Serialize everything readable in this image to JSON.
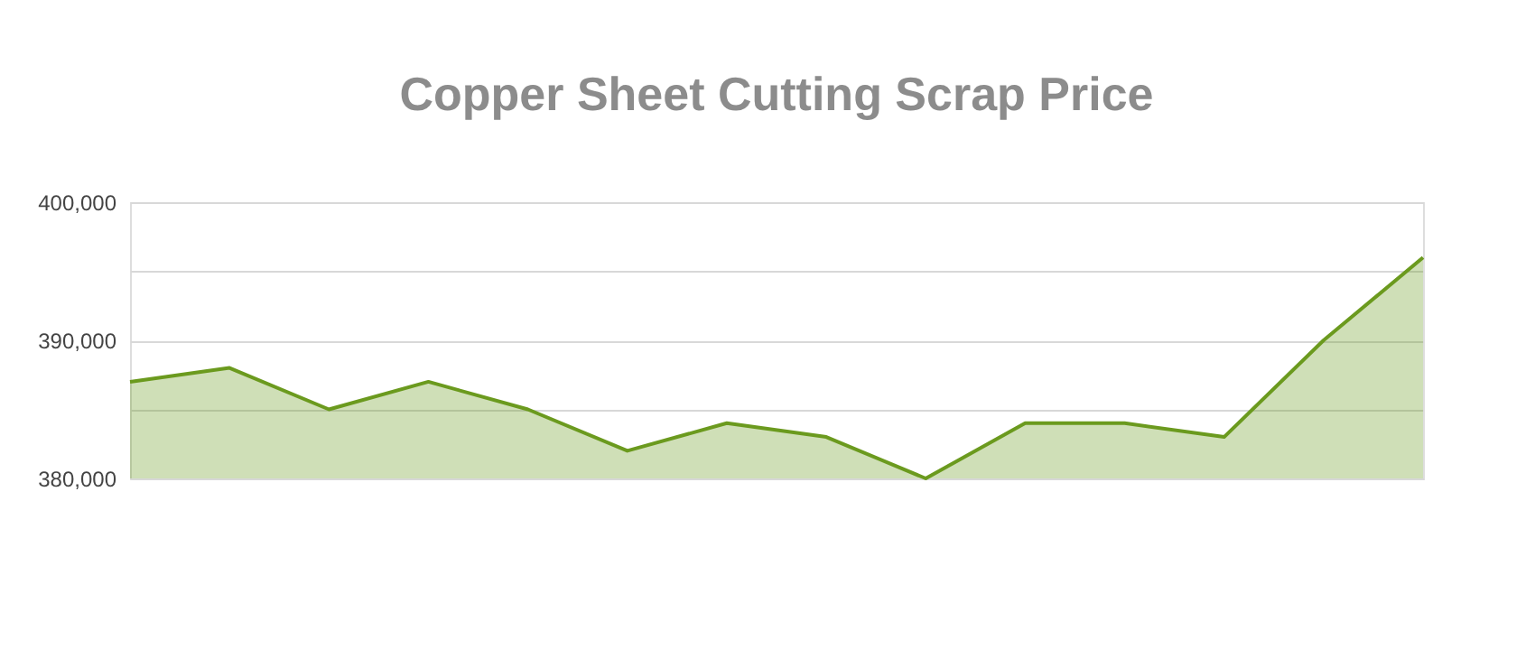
{
  "chart_data": {
    "type": "area",
    "title": "Copper Sheet Cutting Scrap Price",
    "categories": [
      null,
      null,
      null,
      null,
      null,
      null,
      null,
      null,
      null,
      null,
      null,
      null,
      null,
      null
    ],
    "series": [
      {
        "color": "#6b9a1e",
        "values": [
          387000,
          388000,
          385000,
          387000,
          385000,
          382000,
          384000,
          383000,
          380000,
          384000,
          384000,
          383000,
          390000,
          396000
        ]
      }
    ],
    "ylim": [
      380000,
      400000
    ],
    "yticks": [
      {
        "value": 380000,
        "label": "380,000"
      },
      {
        "value": 385000,
        "label": null
      },
      {
        "value": 390000,
        "label": "390,000"
      },
      {
        "value": 395000,
        "label": null
      },
      {
        "value": 400000,
        "label": "400,000"
      }
    ],
    "grid": "y",
    "marker": "none",
    "line_style": "solid"
  }
}
